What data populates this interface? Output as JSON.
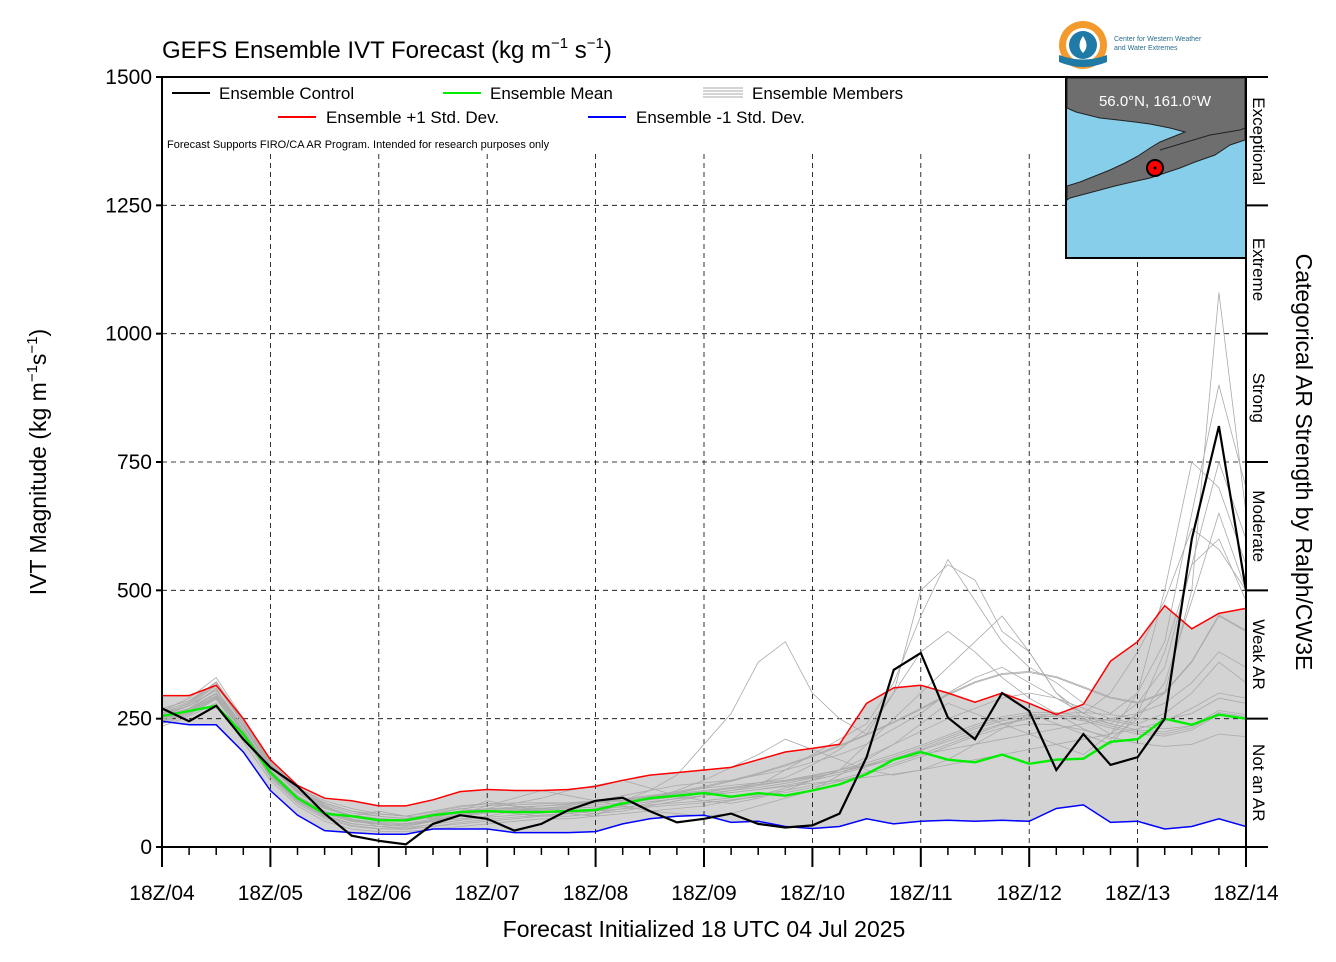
{
  "chart_data": {
    "type": "line",
    "title": "GEFS Ensemble IVT Forecast (kg m",
    "title_sup1": "−1",
    "title_mid": " s",
    "title_sup2": "−1",
    "title_end": ")",
    "ylabel": "IVT Magnitude (kg m",
    "ylabel_sup1": "−1",
    "ylabel_mid": "s",
    "ylabel_sup2": "−1",
    "ylabel_end": ")",
    "xlabel": "Forecast Initialized 18 UTC 04 Jul 2025",
    "right_axis_label": "Categorical AR Strength by Ralph/CW3E",
    "ylim": [
      0,
      1500
    ],
    "xlim": [
      0,
      240
    ],
    "yticks": [
      0,
      250,
      500,
      750,
      1000,
      1250,
      1500
    ],
    "ytick_labels": [
      "0",
      "250",
      "500",
      "750",
      "1000",
      "1250",
      "1500"
    ],
    "xticks": [
      0,
      24,
      48,
      72,
      96,
      120,
      144,
      168,
      192,
      216,
      240
    ],
    "xtick_labels": [
      "18Z/04",
      "18Z/05",
      "18Z/06",
      "18Z/07",
      "18Z/08",
      "18Z/09",
      "18Z/10",
      "18Z/11",
      "18Z/12",
      "18Z/13",
      "18Z/14"
    ],
    "x_units": "forecast hours",
    "grid": true,
    "legend": {
      "placement": "top-left",
      "entries": [
        {
          "label": "Ensemble Control",
          "color": "#000000"
        },
        {
          "label": "Ensemble Mean",
          "color": "#00ee00"
        },
        {
          "label": "Ensemble Members",
          "color": "#aaaaaa"
        },
        {
          "label": "Ensemble +1 Std. Dev.",
          "color": "#ff0000"
        },
        {
          "label": "Ensemble -1 Std. Dev.",
          "color": "#0000ff"
        }
      ]
    },
    "note": "Forecast Supports FIRO/CA AR Program. Intended for research purposes only",
    "categories": [
      {
        "label": "Not an AR",
        "min": 0,
        "max": 250
      },
      {
        "label": "Weak AR",
        "min": 250,
        "max": 500
      },
      {
        "label": "Moderate",
        "min": 500,
        "max": 750
      },
      {
        "label": "Strong",
        "min": 750,
        "max": 1000
      },
      {
        "label": "Extreme",
        "min": 1000,
        "max": 1250
      },
      {
        "label": "Exceptional",
        "min": 1250,
        "max": 1500
      }
    ],
    "inset_location": "56.0°N, 161.0°W",
    "series": [
      {
        "name": "Ensemble Control",
        "color": "#000000",
        "x": [
          0,
          6,
          12,
          18,
          24,
          30,
          36,
          42,
          48,
          54,
          60,
          66,
          72,
          78,
          84,
          90,
          96,
          102,
          108,
          114,
          120,
          126,
          132,
          138,
          144,
          150,
          156,
          162,
          168,
          174,
          180,
          186,
          192,
          198,
          204,
          210,
          216,
          222,
          228,
          234,
          240
        ],
        "values": [
          270,
          245,
          275,
          210,
          155,
          118,
          65,
          22,
          12,
          5,
          45,
          62,
          55,
          32,
          45,
          72,
          90,
          96,
          70,
          48,
          55,
          65,
          45,
          38,
          42,
          65,
          175,
          345,
          378,
          252,
          210,
          300,
          265,
          150,
          220,
          160,
          175,
          250,
          600,
          820,
          500
        ]
      },
      {
        "name": "Ensemble Mean",
        "color": "#00ee00",
        "x": [
          0,
          6,
          12,
          18,
          24,
          30,
          36,
          42,
          48,
          54,
          60,
          66,
          72,
          78,
          84,
          90,
          96,
          102,
          108,
          114,
          120,
          126,
          132,
          138,
          144,
          150,
          156,
          162,
          168,
          174,
          180,
          186,
          192,
          198,
          204,
          210,
          216,
          222,
          228,
          234,
          240
        ],
        "values": [
          255,
          265,
          275,
          220,
          145,
          95,
          65,
          60,
          52,
          52,
          62,
          68,
          70,
          68,
          68,
          70,
          72,
          85,
          95,
          100,
          105,
          98,
          105,
          100,
          110,
          122,
          142,
          170,
          185,
          170,
          165,
          180,
          162,
          170,
          172,
          205,
          210,
          250,
          238,
          258,
          250
        ]
      },
      {
        "name": "Ensemble +1 Std. Dev.",
        "color": "#ff0000",
        "x": [
          0,
          6,
          12,
          18,
          24,
          30,
          36,
          42,
          48,
          54,
          60,
          66,
          72,
          78,
          84,
          90,
          96,
          102,
          108,
          114,
          120,
          126,
          132,
          138,
          144,
          150,
          156,
          162,
          168,
          174,
          180,
          186,
          192,
          198,
          204,
          210,
          216,
          222,
          228,
          234,
          240
        ],
        "values": [
          295,
          295,
          315,
          250,
          170,
          120,
          95,
          90,
          80,
          80,
          92,
          108,
          112,
          110,
          110,
          112,
          118,
          130,
          140,
          145,
          150,
          155,
          170,
          185,
          192,
          200,
          280,
          310,
          315,
          300,
          282,
          300,
          280,
          258,
          278,
          362,
          400,
          470,
          425,
          455,
          465
        ]
      },
      {
        "name": "Ensemble -1 Std. Dev.",
        "color": "#0000ff",
        "x": [
          0,
          6,
          12,
          18,
          24,
          30,
          36,
          42,
          48,
          54,
          60,
          66,
          72,
          78,
          84,
          90,
          96,
          102,
          108,
          114,
          120,
          126,
          132,
          138,
          144,
          150,
          156,
          162,
          168,
          174,
          180,
          186,
          192,
          198,
          204,
          210,
          216,
          222,
          228,
          234,
          240
        ],
        "values": [
          245,
          238,
          238,
          185,
          110,
          62,
          32,
          28,
          25,
          25,
          35,
          35,
          35,
          28,
          28,
          28,
          30,
          45,
          55,
          60,
          62,
          48,
          50,
          40,
          36,
          40,
          55,
          45,
          50,
          52,
          50,
          52,
          50,
          75,
          82,
          48,
          50,
          35,
          40,
          55,
          40
        ]
      }
    ],
    "members": [
      [
        250,
        265,
        300,
        235,
        160,
        110,
        80,
        60,
        70,
        60,
        55,
        70,
        90,
        80,
        70,
        65,
        60,
        90,
        110,
        140,
        200,
        260,
        360,
        400,
        300,
        250,
        220,
        300,
        500,
        550,
        520,
        420,
        380,
        300,
        250,
        220,
        260,
        300,
        500,
        1080,
        650
      ],
      [
        260,
        280,
        320,
        240,
        150,
        100,
        70,
        55,
        40,
        45,
        50,
        55,
        60,
        70,
        75,
        70,
        65,
        70,
        80,
        90,
        100,
        110,
        120,
        150,
        180,
        210,
        240,
        320,
        450,
        560,
        480,
        400,
        350,
        320,
        280,
        260,
        300,
        400,
        650,
        900,
        700
      ],
      [
        240,
        270,
        310,
        220,
        140,
        90,
        60,
        45,
        40,
        35,
        45,
        60,
        75,
        85,
        95,
        110,
        120,
        130,
        115,
        100,
        90,
        85,
        95,
        110,
        130,
        150,
        200,
        250,
        300,
        350,
        400,
        450,
        380,
        300,
        260,
        240,
        280,
        350,
        550,
        750,
        600
      ],
      [
        265,
        290,
        330,
        250,
        160,
        110,
        85,
        70,
        60,
        55,
        65,
        75,
        70,
        65,
        60,
        60,
        65,
        75,
        85,
        95,
        105,
        115,
        125,
        135,
        160,
        190,
        230,
        300,
        380,
        420,
        380,
        330,
        290,
        260,
        230,
        210,
        250,
        320,
        480,
        650,
        500
      ],
      [
        255,
        270,
        300,
        230,
        150,
        95,
        65,
        50,
        45,
        40,
        50,
        65,
        80,
        95,
        110,
        100,
        90,
        80,
        70,
        65,
        60,
        65,
        80,
        95,
        110,
        140,
        170,
        200,
        240,
        280,
        260,
        240,
        220,
        200,
        180,
        220,
        300,
        500,
        750,
        700,
        550
      ],
      [
        245,
        260,
        290,
        215,
        135,
        85,
        55,
        40,
        35,
        35,
        40,
        45,
        50,
        55,
        60,
        65,
        70,
        80,
        95,
        110,
        130,
        155,
        180,
        210,
        190,
        170,
        150,
        140,
        150,
        170,
        200,
        230,
        260,
        240,
        220,
        200,
        260,
        380,
        550,
        600,
        480
      ],
      [
        270,
        285,
        320,
        245,
        165,
        115,
        90,
        75,
        65,
        60,
        70,
        80,
        85,
        80,
        75,
        80,
        90,
        100,
        110,
        120,
        125,
        130,
        140,
        150,
        165,
        180,
        200,
        230,
        260,
        300,
        330,
        350,
        320,
        290,
        260,
        300,
        380,
        480,
        620,
        580,
        500
      ],
      [
        235,
        255,
        280,
        205,
        130,
        80,
        50,
        35,
        30,
        30,
        35,
        40,
        45,
        50,
        55,
        55,
        60,
        65,
        70,
        75,
        80,
        90,
        100,
        115,
        130,
        150,
        175,
        200,
        225,
        250,
        270,
        290,
        300,
        290,
        270,
        250,
        240,
        260,
        300,
        360,
        320
      ],
      [
        260,
        275,
        305,
        235,
        155,
        105,
        75,
        60,
        55,
        50,
        60,
        70,
        75,
        75,
        70,
        70,
        75,
        85,
        95,
        105,
        115,
        120,
        125,
        130,
        140,
        150,
        160,
        170,
        180,
        190,
        200,
        210,
        220,
        230,
        240,
        250,
        260,
        280,
        320,
        380,
        350
      ],
      [
        250,
        265,
        295,
        225,
        148,
        98,
        68,
        52,
        46,
        44,
        52,
        62,
        68,
        72,
        74,
        76,
        78,
        82,
        88,
        94,
        100,
        106,
        112,
        118,
        124,
        130,
        136,
        142,
        150,
        160,
        170,
        180,
        190,
        200,
        210,
        220,
        230,
        245,
        270,
        300,
        290
      ],
      [
        255,
        275,
        315,
        240,
        158,
        108,
        78,
        62,
        56,
        52,
        58,
        66,
        72,
        76,
        80,
        84,
        88,
        92,
        98,
        104,
        110,
        116,
        122,
        128,
        136,
        146,
        158,
        172,
        188,
        206,
        224,
        240,
        252,
        260,
        262,
        258,
        250,
        248,
        260,
        290,
        280
      ],
      [
        245,
        262,
        292,
        222,
        142,
        92,
        62,
        46,
        40,
        38,
        44,
        52,
        58,
        62,
        66,
        70,
        74,
        78,
        82,
        86,
        90,
        96,
        102,
        110,
        120,
        132,
        146,
        162,
        180,
        200,
        220,
        238,
        250,
        256,
        254,
        246,
        236,
        230,
        236,
        256,
        250
      ],
      [
        265,
        282,
        322,
        248,
        166,
        116,
        86,
        70,
        64,
        60,
        68,
        78,
        84,
        86,
        86,
        86,
        88,
        92,
        98,
        106,
        116,
        128,
        142,
        158,
        176,
        196,
        218,
        242,
        268,
        296,
        320,
        336,
        340,
        330,
        310,
        290,
        280,
        300,
        360,
        450,
        420
      ],
      [
        240,
        258,
        288,
        218,
        138,
        88,
        58,
        42,
        36,
        34,
        40,
        48,
        54,
        58,
        62,
        66,
        70,
        74,
        78,
        82,
        86,
        92,
        98,
        106,
        116,
        128,
        142,
        158,
        176,
        196,
        216,
        232,
        240,
        238,
        228,
        214,
        202,
        196,
        200,
        220,
        215
      ],
      [
        258,
        276,
        306,
        236,
        156,
        106,
        76,
        60,
        54,
        50,
        58,
        68,
        74,
        78,
        80,
        82,
        86,
        90,
        96,
        102,
        108,
        114,
        120,
        128,
        138,
        150,
        164,
        180,
        198,
        218,
        238,
        254,
        262,
        262,
        254,
        240,
        228,
        224,
        236,
        266,
        258
      ],
      [
        252,
        268,
        298,
        228,
        150,
        100,
        70,
        54,
        48,
        46,
        54,
        64,
        70,
        74,
        76,
        78,
        82,
        86,
        92,
        98,
        104,
        110,
        116,
        124,
        134,
        146,
        160,
        176,
        194,
        214,
        234,
        250,
        258,
        258,
        250,
        236,
        224,
        220,
        232,
        262,
        254
      ],
      [
        248,
        264,
        294,
        224,
        146,
        96,
        66,
        50,
        44,
        42,
        50,
        60,
        66,
        70,
        72,
        74,
        78,
        82,
        88,
        94,
        100,
        106,
        112,
        120,
        130,
        142,
        156,
        172,
        190,
        210,
        230,
        246,
        254,
        254,
        246,
        232,
        220,
        216,
        228,
        258,
        250
      ],
      [
        262,
        279,
        316,
        244,
        162,
        112,
        82,
        66,
        60,
        56,
        64,
        74,
        80,
        82,
        84,
        86,
        90,
        94,
        100,
        108,
        118,
        130,
        144,
        160,
        178,
        198,
        220,
        244,
        270,
        298,
        322,
        338,
        342,
        332,
        312,
        292,
        282,
        302,
        362,
        452,
        422
      ]
    ]
  }
}
